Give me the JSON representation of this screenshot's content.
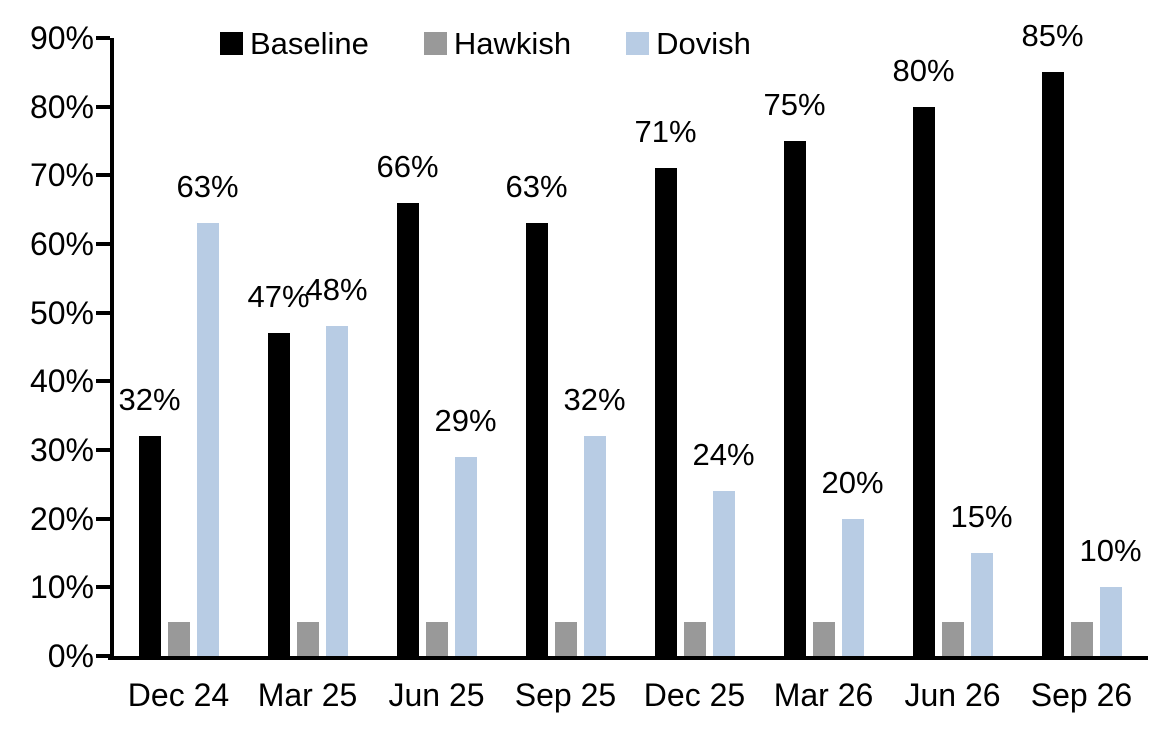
{
  "chart_data": {
    "type": "bar",
    "title": "",
    "categories": [
      "Dec 24",
      "Mar 25",
      "Jun 25",
      "Sep 25",
      "Dec 25",
      "Mar 26",
      "Jun 26",
      "Sep 26"
    ],
    "series": [
      {
        "name": "Baseline",
        "color": "#000000",
        "values": [
          32,
          47,
          66,
          63,
          71,
          75,
          80,
          85
        ],
        "data_labels": [
          "32%",
          "47%",
          "66%",
          "63%",
          "71%",
          "75%",
          "80%",
          "85%"
        ],
        "show_labels": true
      },
      {
        "name": "Hawkish",
        "color": "#999999",
        "values": [
          5,
          5,
          5,
          5,
          5,
          5,
          5,
          5
        ],
        "data_labels": [],
        "show_labels": false
      },
      {
        "name": "Dovish",
        "color": "#b8cce4",
        "values": [
          63,
          48,
          29,
          32,
          24,
          20,
          15,
          10
        ],
        "data_labels": [
          "63%",
          "48%",
          "29%",
          "32%",
          "24%",
          "20%",
          "15%",
          "10%"
        ],
        "show_labels": true
      }
    ],
    "ylim": [
      0,
      90
    ],
    "ytick_step": 10,
    "ytick_labels": [
      "0%",
      "10%",
      "20%",
      "30%",
      "40%",
      "50%",
      "60%",
      "70%",
      "80%",
      "90%"
    ],
    "grid": false,
    "legend_position": "top-center",
    "axis_color": "#000000",
    "background_color": "#ffffff",
    "text_color": "#000000"
  }
}
